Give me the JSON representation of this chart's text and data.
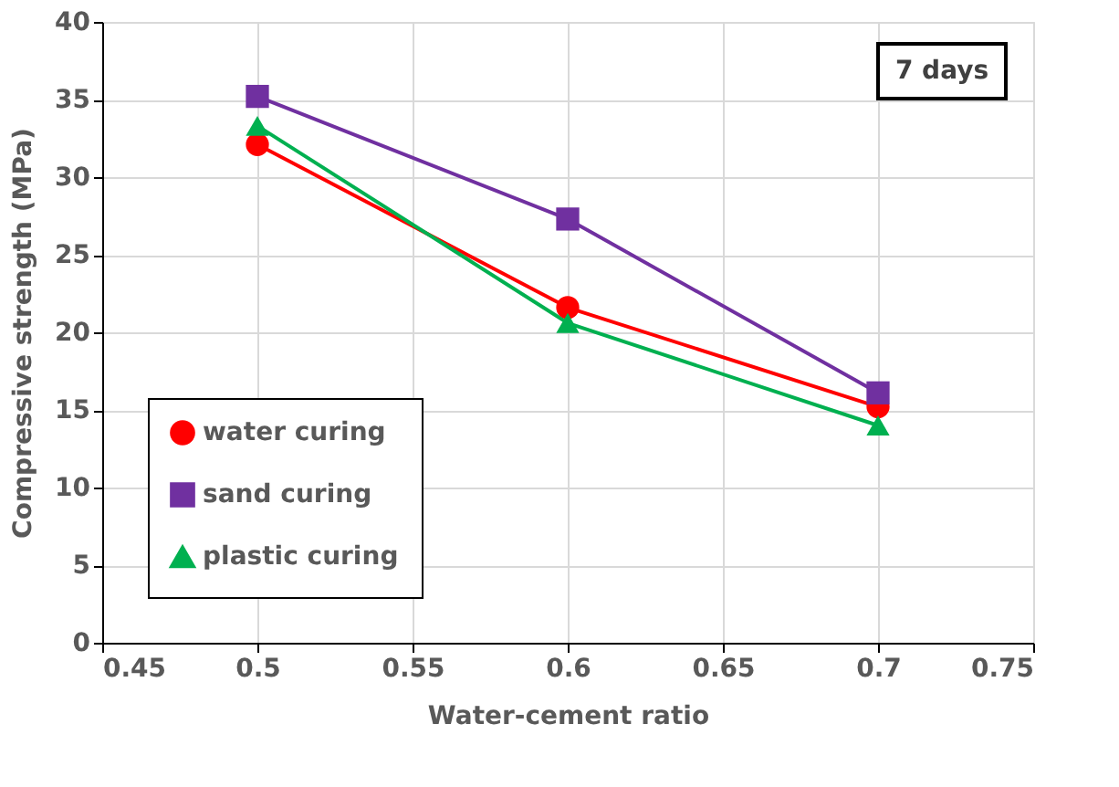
{
  "chart_data": {
    "type": "line",
    "xlabel": "Water-cement ratio",
    "ylabel": "Compressive strength (MPa)",
    "x": [
      0.5,
      0.6,
      0.7
    ],
    "series": [
      {
        "name": "water curing",
        "color": "#ff0000",
        "marker": "circle",
        "values": [
          32.1,
          21.6,
          15.2
        ]
      },
      {
        "name": "sand curing",
        "color": "#7030a0",
        "marker": "square",
        "values": [
          35.2,
          27.3,
          16.1
        ]
      },
      {
        "name": "plastic curing",
        "color": "#00b050",
        "marker": "triangle",
        "values": [
          33.3,
          20.6,
          14.0
        ]
      }
    ],
    "xlim": [
      0.45,
      0.75
    ],
    "xticks": [
      0.45,
      0.5,
      0.55,
      0.6,
      0.65,
      0.7,
      0.75
    ],
    "ylim": [
      0,
      40
    ],
    "yticks": [
      0,
      5,
      10,
      15,
      20,
      25,
      30,
      35,
      40
    ],
    "grid": true,
    "legend": "bottom left",
    "line_style": "solid",
    "annotations": [
      "7 days"
    ]
  }
}
